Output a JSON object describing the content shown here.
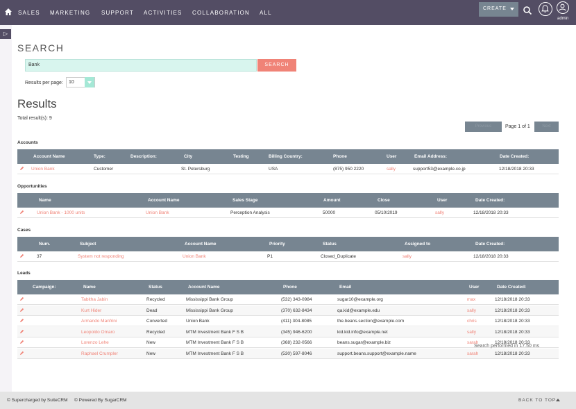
{
  "nav": {
    "items": [
      "SALES",
      "MARKETING",
      "SUPPORT",
      "ACTIVITIES",
      "COLLABORATION",
      "ALL"
    ],
    "create_label": "CREATE",
    "user_label": "admin"
  },
  "search": {
    "heading": "SEARCH",
    "query": "Bank",
    "button_label": "SEARCH",
    "rpp_label": "Results per page:",
    "rpp_value": "10"
  },
  "results": {
    "heading": "Results",
    "total": "Total result(s): 9",
    "pagination": {
      "prev": "Previous",
      "label": "Page 1 of 1",
      "next": "Next"
    }
  },
  "sections": {
    "accounts": {
      "title": "Accounts",
      "headers": [
        "Account Name",
        "Type:",
        "Description:",
        "City",
        "Testing",
        "Billing Country:",
        "Phone",
        "User",
        "Email Address:",
        "Date Created:"
      ],
      "rows": [
        [
          "Union Bank",
          "Customer",
          "",
          "St. Petersburg",
          "",
          "USA",
          "(875) 950 2220",
          "sally",
          "support53@example.co.jp",
          "12/18/2018 20:33"
        ]
      ]
    },
    "opportunities": {
      "title": "Opportunities",
      "headers": [
        "Name",
        "Account Name",
        "Sales Stage",
        "Amount",
        "Close",
        "User",
        "Date Created:"
      ],
      "rows": [
        [
          "Union Bank - 1000 units",
          "Union Bank",
          "Perception Analysis",
          "50000",
          "05/10/2019",
          "sally",
          "12/18/2018 20:33"
        ]
      ]
    },
    "cases": {
      "title": "Cases",
      "headers": [
        "Num.",
        "Subject",
        "Account Name",
        "Priority",
        "Status",
        "Assigned to",
        "Date Created:"
      ],
      "rows": [
        [
          "37",
          "System not responding",
          "Union Bank",
          "P1",
          "Closed_Duplicate",
          "sally",
          "12/18/2018 20:33"
        ]
      ]
    },
    "leads": {
      "title": "Leads",
      "headers": [
        "Campaign:",
        "Name",
        "Status",
        "Account Name",
        "Phone",
        "Email",
        "User",
        "Date Created:"
      ],
      "rows": [
        [
          "",
          "Tabitha Jabin",
          "Recycled",
          "Mississippi Bank Group",
          "(532) 343-0984",
          "sugar10@example.org",
          "max",
          "12/18/2018 20:33"
        ],
        [
          "",
          "Kurt Hider",
          "Dead",
          "Mississippi Bank Group",
          "(370) 632-8434",
          "qa.kid@example.edu",
          "sally",
          "12/18/2018 20:33"
        ],
        [
          "",
          "Armando Manfrini",
          "Converted",
          "Union Bank",
          "(411) 304-8085",
          "the.beans.section@example.com",
          "chris",
          "12/18/2018 20:33"
        ],
        [
          "",
          "Leopoldo Omaro",
          "Recycled",
          "MTM Investment Bank F S B",
          "(345) 946-6200",
          "kid.kid.info@example.net",
          "sally",
          "12/18/2018 20:33"
        ],
        [
          "",
          "Lorenzo Lehe",
          "New",
          "MTM Investment Bank F S B",
          "(368) 232-0566",
          "beans.sugar@example.biz",
          "sarah",
          "12/18/2018 20:33"
        ],
        [
          "",
          "Raphael Crumpler",
          "New",
          "MTM Investment Bank F S B",
          "(530) 597-8046",
          "support.beans.support@example.name",
          "sarah",
          "12/18/2018 20:33"
        ]
      ]
    }
  },
  "perf": "Search performed in 17.50 ms",
  "footer": {
    "supercharged": "© Supercharged by SuiteCRM",
    "powered": "© Powered By SugarCRM",
    "back_to_top": "BACK TO TOP"
  },
  "colors": {
    "nav_bg": "#534d64",
    "header_bg": "#778591",
    "link": "#f08377",
    "search_bg": "#d8f5ee"
  }
}
